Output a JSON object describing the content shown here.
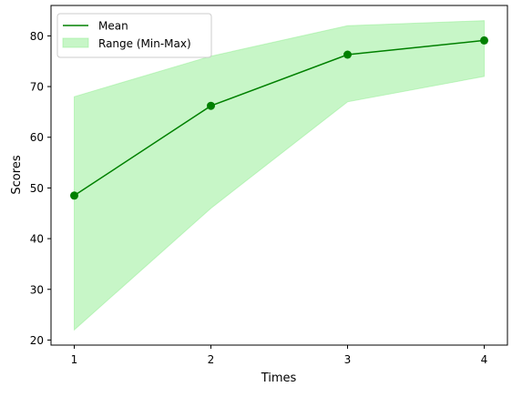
{
  "chart_data": {
    "type": "line",
    "title": "",
    "xlabel": "Times",
    "ylabel": "Scores",
    "x": [
      1,
      2,
      3,
      4
    ],
    "xlim": [
      0.83,
      4.17
    ],
    "ylim": [
      19,
      86
    ],
    "x_ticks": [
      1,
      2,
      3,
      4
    ],
    "y_ticks": [
      20,
      30,
      40,
      50,
      60,
      70,
      80
    ],
    "grid": false,
    "legend_position": "top-left",
    "series": [
      {
        "name": "Mean",
        "kind": "line",
        "values": [
          48.5,
          66.2,
          76.3,
          79.1
        ],
        "color": "#008000",
        "markers": true
      },
      {
        "name": "Range (Min-Max)",
        "kind": "band",
        "lower": [
          22,
          46,
          67,
          72
        ],
        "upper": [
          68,
          76,
          82,
          83
        ],
        "color": "#90ee90"
      }
    ]
  }
}
